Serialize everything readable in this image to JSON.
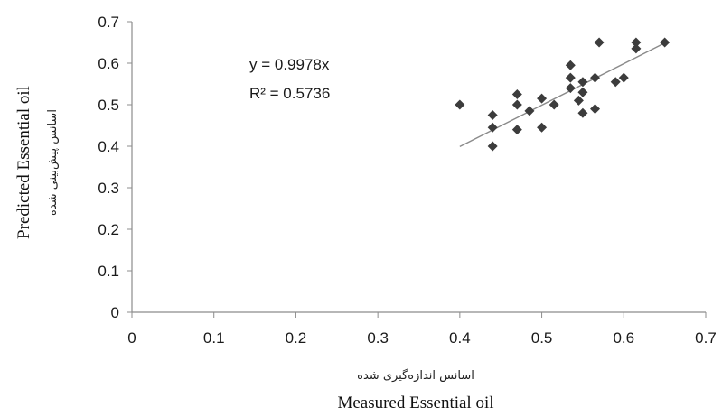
{
  "chart_data": {
    "type": "scatter",
    "x_ticks": [
      "0",
      "0.1",
      "0.2",
      "0.3",
      "0.4",
      "0.5",
      "0.6",
      "0.7"
    ],
    "y_ticks": [
      "0",
      "0.1",
      "0.2",
      "0.3",
      "0.4",
      "0.5",
      "0.6",
      "0.7"
    ],
    "xlim": [
      0,
      0.7
    ],
    "ylim": [
      0,
      0.7
    ],
    "xlabel": "Measured Essential oil",
    "xlabel_fa": "اسانس اندازه‌گیری شده",
    "ylabel": "Predicted Essential oil",
    "ylabel_fa": "اسانس پیش‌بینی شده",
    "equation": "y = 0.9978x",
    "r_squared": "R² = 0.5736",
    "grid": false,
    "marker": "diamond",
    "marker_color": "#3c3c3c",
    "trendline_color": "#8a8a8a",
    "trendline": {
      "slope": 0.9978,
      "x_range": [
        0.4,
        0.65
      ]
    },
    "points": [
      {
        "x": 0.4,
        "y": 0.5
      },
      {
        "x": 0.44,
        "y": 0.475
      },
      {
        "x": 0.44,
        "y": 0.445
      },
      {
        "x": 0.44,
        "y": 0.4
      },
      {
        "x": 0.47,
        "y": 0.525
      },
      {
        "x": 0.47,
        "y": 0.5
      },
      {
        "x": 0.47,
        "y": 0.44
      },
      {
        "x": 0.485,
        "y": 0.485
      },
      {
        "x": 0.5,
        "y": 0.515
      },
      {
        "x": 0.5,
        "y": 0.445
      },
      {
        "x": 0.515,
        "y": 0.5
      },
      {
        "x": 0.535,
        "y": 0.595
      },
      {
        "x": 0.535,
        "y": 0.565
      },
      {
        "x": 0.535,
        "y": 0.54
      },
      {
        "x": 0.545,
        "y": 0.51
      },
      {
        "x": 0.55,
        "y": 0.555
      },
      {
        "x": 0.55,
        "y": 0.53
      },
      {
        "x": 0.55,
        "y": 0.48
      },
      {
        "x": 0.565,
        "y": 0.565
      },
      {
        "x": 0.565,
        "y": 0.49
      },
      {
        "x": 0.57,
        "y": 0.65
      },
      {
        "x": 0.59,
        "y": 0.555
      },
      {
        "x": 0.6,
        "y": 0.565
      },
      {
        "x": 0.615,
        "y": 0.65
      },
      {
        "x": 0.615,
        "y": 0.635
      },
      {
        "x": 0.65,
        "y": 0.65
      }
    ]
  }
}
